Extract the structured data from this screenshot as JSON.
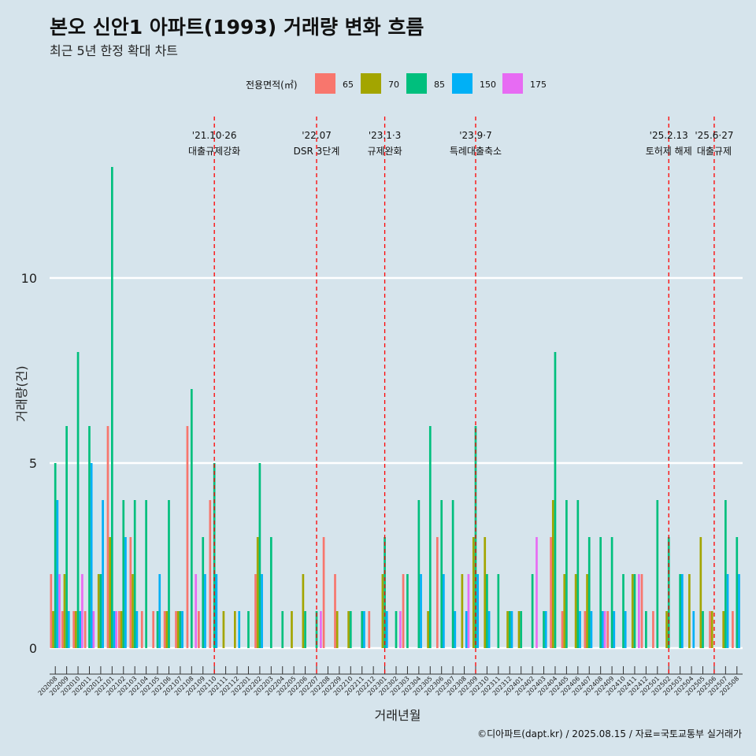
{
  "chart_data": {
    "type": "bar",
    "title": "본오 신안1 아파트(1993) 거래량 변화 흐름",
    "subtitle": "최근 5년 한정 확대 차트",
    "xlabel": "거래년월",
    "ylabel": "거래량(건)",
    "caption": "©디아파트(dapt.kr) / 2025.08.15 / 자료=국토교통부 실거래가",
    "legend_title": "전용면적(㎡)",
    "legend_position": "top",
    "ylim": [
      0,
      13
    ],
    "yticks": [
      0,
      5,
      10
    ],
    "grid": true,
    "series": [
      {
        "name": "65",
        "color": "#f8766d"
      },
      {
        "name": "70",
        "color": "#a3a500"
      },
      {
        "name": "85",
        "color": "#00bf7d"
      },
      {
        "name": "150",
        "color": "#00b0f6"
      },
      {
        "name": "175",
        "color": "#e76bf3"
      }
    ],
    "months": [
      {
        "x": "202008",
        "v": [
          2,
          1,
          5,
          4,
          2
        ]
      },
      {
        "x": "202009",
        "v": [
          1,
          2,
          6,
          1,
          0
        ]
      },
      {
        "x": "202010",
        "v": [
          1,
          1,
          8,
          1,
          2
        ]
      },
      {
        "x": "202011",
        "v": [
          1,
          0,
          6,
          5,
          1
        ]
      },
      {
        "x": "202012",
        "v": [
          0,
          2,
          2,
          4,
          0
        ]
      },
      {
        "x": "202101",
        "v": [
          6,
          3,
          13,
          1,
          1
        ]
      },
      {
        "x": "202102",
        "v": [
          1,
          1,
          4,
          3,
          0
        ]
      },
      {
        "x": "202103",
        "v": [
          3,
          2,
          4,
          1,
          0
        ]
      },
      {
        "x": "202104",
        "v": [
          1,
          0,
          4,
          0,
          0
        ]
      },
      {
        "x": "202105",
        "v": [
          1,
          0,
          1,
          2,
          0
        ]
      },
      {
        "x": "202106",
        "v": [
          1,
          1,
          4,
          0,
          0
        ]
      },
      {
        "x": "202107",
        "v": [
          1,
          1,
          1,
          1,
          0
        ]
      },
      {
        "x": "202108",
        "v": [
          6,
          0,
          7,
          0,
          2
        ]
      },
      {
        "x": "202109",
        "v": [
          1,
          0,
          3,
          2,
          0
        ]
      },
      {
        "x": "202110",
        "v": [
          4,
          0,
          5,
          2,
          0
        ]
      },
      {
        "x": "202111",
        "v": [
          0,
          1,
          0,
          0,
          0
        ]
      },
      {
        "x": "202112",
        "v": [
          0,
          1,
          0,
          1,
          0
        ]
      },
      {
        "x": "202201",
        "v": [
          0,
          0,
          1,
          0,
          0
        ]
      },
      {
        "x": "202202",
        "v": [
          2,
          3,
          5,
          2,
          0
        ]
      },
      {
        "x": "202203",
        "v": [
          0,
          0,
          3,
          0,
          0
        ]
      },
      {
        "x": "202204",
        "v": [
          0,
          0,
          1,
          0,
          0
        ]
      },
      {
        "x": "202205",
        "v": [
          0,
          1,
          0,
          0,
          0
        ]
      },
      {
        "x": "202206",
        "v": [
          0,
          2,
          1,
          0,
          0
        ]
      },
      {
        "x": "202207",
        "v": [
          0,
          0,
          1,
          0,
          1
        ]
      },
      {
        "x": "202208",
        "v": [
          3,
          0,
          0,
          0,
          0
        ]
      },
      {
        "x": "202209",
        "v": [
          2,
          1,
          0,
          0,
          0
        ]
      },
      {
        "x": "202210",
        "v": [
          0,
          1,
          1,
          0,
          0
        ]
      },
      {
        "x": "202211",
        "v": [
          0,
          0,
          1,
          1,
          0
        ]
      },
      {
        "x": "202212",
        "v": [
          1,
          0,
          0,
          0,
          0
        ]
      },
      {
        "x": "202301",
        "v": [
          0,
          2,
          3,
          1,
          0
        ]
      },
      {
        "x": "202302",
        "v": [
          0,
          0,
          1,
          0,
          1
        ]
      },
      {
        "x": "202303",
        "v": [
          2,
          0,
          2,
          0,
          0
        ]
      },
      {
        "x": "202304",
        "v": [
          0,
          0,
          4,
          2,
          0
        ]
      },
      {
        "x": "202305",
        "v": [
          0,
          1,
          6,
          0,
          0
        ]
      },
      {
        "x": "202306",
        "v": [
          3,
          0,
          4,
          2,
          0
        ]
      },
      {
        "x": "202307",
        "v": [
          0,
          0,
          4,
          1,
          0
        ]
      },
      {
        "x": "202308",
        "v": [
          0,
          2,
          0,
          1,
          2
        ]
      },
      {
        "x": "202309",
        "v": [
          0,
          3,
          6,
          2,
          0
        ]
      },
      {
        "x": "202310",
        "v": [
          0,
          3,
          2,
          1,
          0
        ]
      },
      {
        "x": "202311",
        "v": [
          0,
          0,
          2,
          0,
          0
        ]
      },
      {
        "x": "202312",
        "v": [
          0,
          1,
          1,
          1,
          0
        ]
      },
      {
        "x": "202401",
        "v": [
          0,
          1,
          1,
          0,
          0
        ]
      },
      {
        "x": "202402",
        "v": [
          0,
          0,
          2,
          0,
          3
        ]
      },
      {
        "x": "202403",
        "v": [
          0,
          0,
          1,
          1,
          0
        ]
      },
      {
        "x": "202404",
        "v": [
          3,
          4,
          8,
          0,
          0
        ]
      },
      {
        "x": "202405",
        "v": [
          1,
          2,
          4,
          0,
          0
        ]
      },
      {
        "x": "202406",
        "v": [
          0,
          2,
          4,
          1,
          0
        ]
      },
      {
        "x": "202407",
        "v": [
          1,
          2,
          3,
          1,
          0
        ]
      },
      {
        "x": "202408",
        "v": [
          0,
          0,
          3,
          1,
          1
        ]
      },
      {
        "x": "202409",
        "v": [
          1,
          0,
          3,
          1,
          0
        ]
      },
      {
        "x": "202410",
        "v": [
          0,
          0,
          2,
          1,
          0
        ]
      },
      {
        "x": "202411",
        "v": [
          0,
          2,
          2,
          0,
          2
        ]
      },
      {
        "x": "202412",
        "v": [
          2,
          0,
          1,
          0,
          0
        ]
      },
      {
        "x": "202501",
        "v": [
          1,
          0,
          4,
          0,
          0
        ]
      },
      {
        "x": "202502",
        "v": [
          0,
          1,
          3,
          0,
          0
        ]
      },
      {
        "x": "202503",
        "v": [
          0,
          0,
          2,
          2,
          0
        ]
      },
      {
        "x": "202504",
        "v": [
          0,
          2,
          0,
          1,
          0
        ]
      },
      {
        "x": "202505",
        "v": [
          0,
          3,
          1,
          0,
          0
        ]
      },
      {
        "x": "202506",
        "v": [
          1,
          1,
          0,
          0,
          0
        ]
      },
      {
        "x": "202507",
        "v": [
          0,
          1,
          4,
          2,
          0
        ]
      },
      {
        "x": "202508",
        "v": [
          1,
          0,
          3,
          2,
          0
        ]
      }
    ],
    "annotations": [
      {
        "x": "202110",
        "line1": "'21.10·26",
        "line2": "대출규제강화"
      },
      {
        "x": "202207",
        "line1": "'22.07",
        "line2": "DSR 3단계"
      },
      {
        "x": "202301",
        "line1": "'23.1·3",
        "line2": "규제완화"
      },
      {
        "x": "202309",
        "line1": "'23.9·7",
        "line2": "특례대출축소"
      },
      {
        "x": "202502",
        "line1": "'25.2.13",
        "line2": "토허제 해제"
      },
      {
        "x": "202506",
        "line1": "'25.6·27",
        "line2": "대출규제"
      }
    ]
  }
}
